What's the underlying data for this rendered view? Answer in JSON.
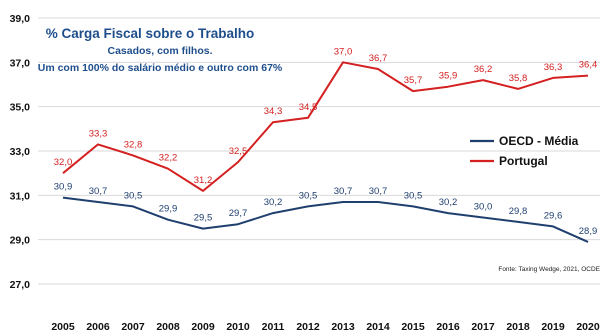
{
  "chart_data": {
    "type": "line",
    "title": "% Carga Fiscal sobre o Trabalho",
    "subtitle_lines": [
      "Casados, com filhos.",
      "Um com 100% do salário médio e outro com 67%"
    ],
    "x": [
      "2005",
      "2006",
      "2007",
      "2008",
      "2009",
      "2010",
      "2011",
      "2012",
      "2013",
      "2014",
      "2015",
      "2016",
      "2017",
      "2018",
      "2019",
      "2020"
    ],
    "y_ticks": [
      "27,0",
      "29,0",
      "31,0",
      "33,0",
      "35,0",
      "37,0",
      "39,0"
    ],
    "ylim": [
      27,
      39
    ],
    "grid": true,
    "legend_position": "right",
    "series": [
      {
        "name": "OECD - Média",
        "color": "#1f3f6e",
        "values": [
          30.9,
          30.7,
          30.5,
          29.9,
          29.5,
          29.7,
          30.2,
          30.5,
          30.7,
          30.7,
          30.5,
          30.2,
          30.0,
          29.8,
          29.6,
          28.9
        ],
        "labels": [
          "30,9",
          "30,7",
          "30,5",
          "29,9",
          "29,5",
          "29,7",
          "30,2",
          "30,5",
          "30,7",
          "30,7",
          "30,5",
          "30,2",
          "30,0",
          "29,8",
          "29,6",
          "28,9"
        ]
      },
      {
        "name": "Portugal",
        "color": "#d42020",
        "values": [
          32.0,
          33.3,
          32.8,
          32.2,
          31.2,
          32.5,
          34.3,
          34.5,
          37.0,
          36.7,
          35.7,
          35.9,
          36.2,
          35.8,
          36.3,
          36.4
        ],
        "labels": [
          "32,0",
          "33,3",
          "32,8",
          "32,2",
          "31,2",
          "32,5",
          "34,3",
          "34,5",
          "37,0",
          "36,7",
          "35,7",
          "35,9",
          "36,2",
          "35,8",
          "36,3",
          "36,4"
        ]
      }
    ],
    "source": "Fonte: Taxing Wedge, 2021, OCDE",
    "title_color": "#1f4e8c"
  }
}
